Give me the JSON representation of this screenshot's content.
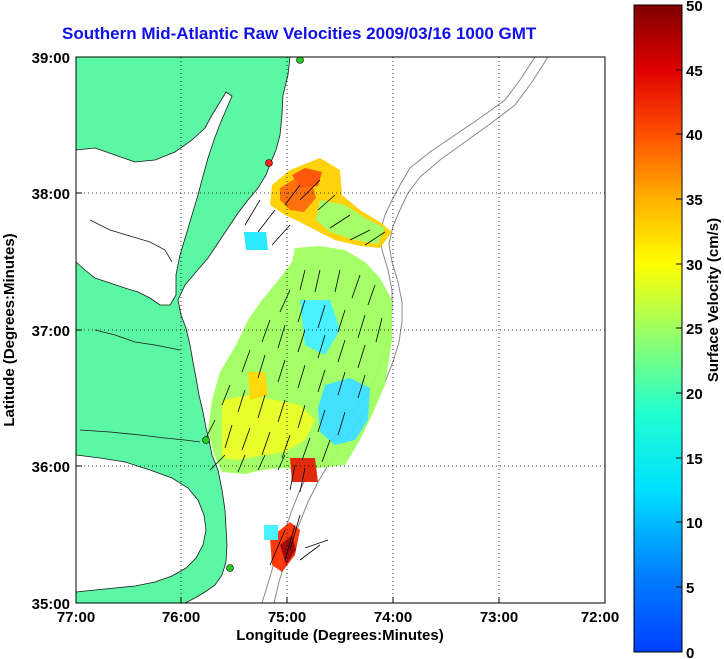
{
  "title": "Southern Mid-Atlantic Raw Velocities 2009/03/16 1000 GMT",
  "axes": {
    "xlabel": "Longitude (Degrees:Minutes)",
    "ylabel": "Latitude (Degrees:Minutes)",
    "x_ticks": [
      "77:00",
      "76:00",
      "75:00",
      "74:00",
      "73:00",
      "72:00"
    ],
    "y_ticks": [
      "39:00",
      "38:00",
      "37:00",
      "36:00",
      "35:00"
    ],
    "grid": "dotted"
  },
  "colorbar": {
    "label": "Surface Velocity (cm/s)",
    "ticks": [
      "50",
      "45",
      "40",
      "35",
      "30",
      "25",
      "20",
      "15",
      "10",
      "5",
      "0"
    ]
  },
  "colors": {
    "land": "#5cf7a4",
    "title": "#1010e8",
    "station_marker": "#22cc22",
    "highlight_station": "#ff2020"
  }
}
